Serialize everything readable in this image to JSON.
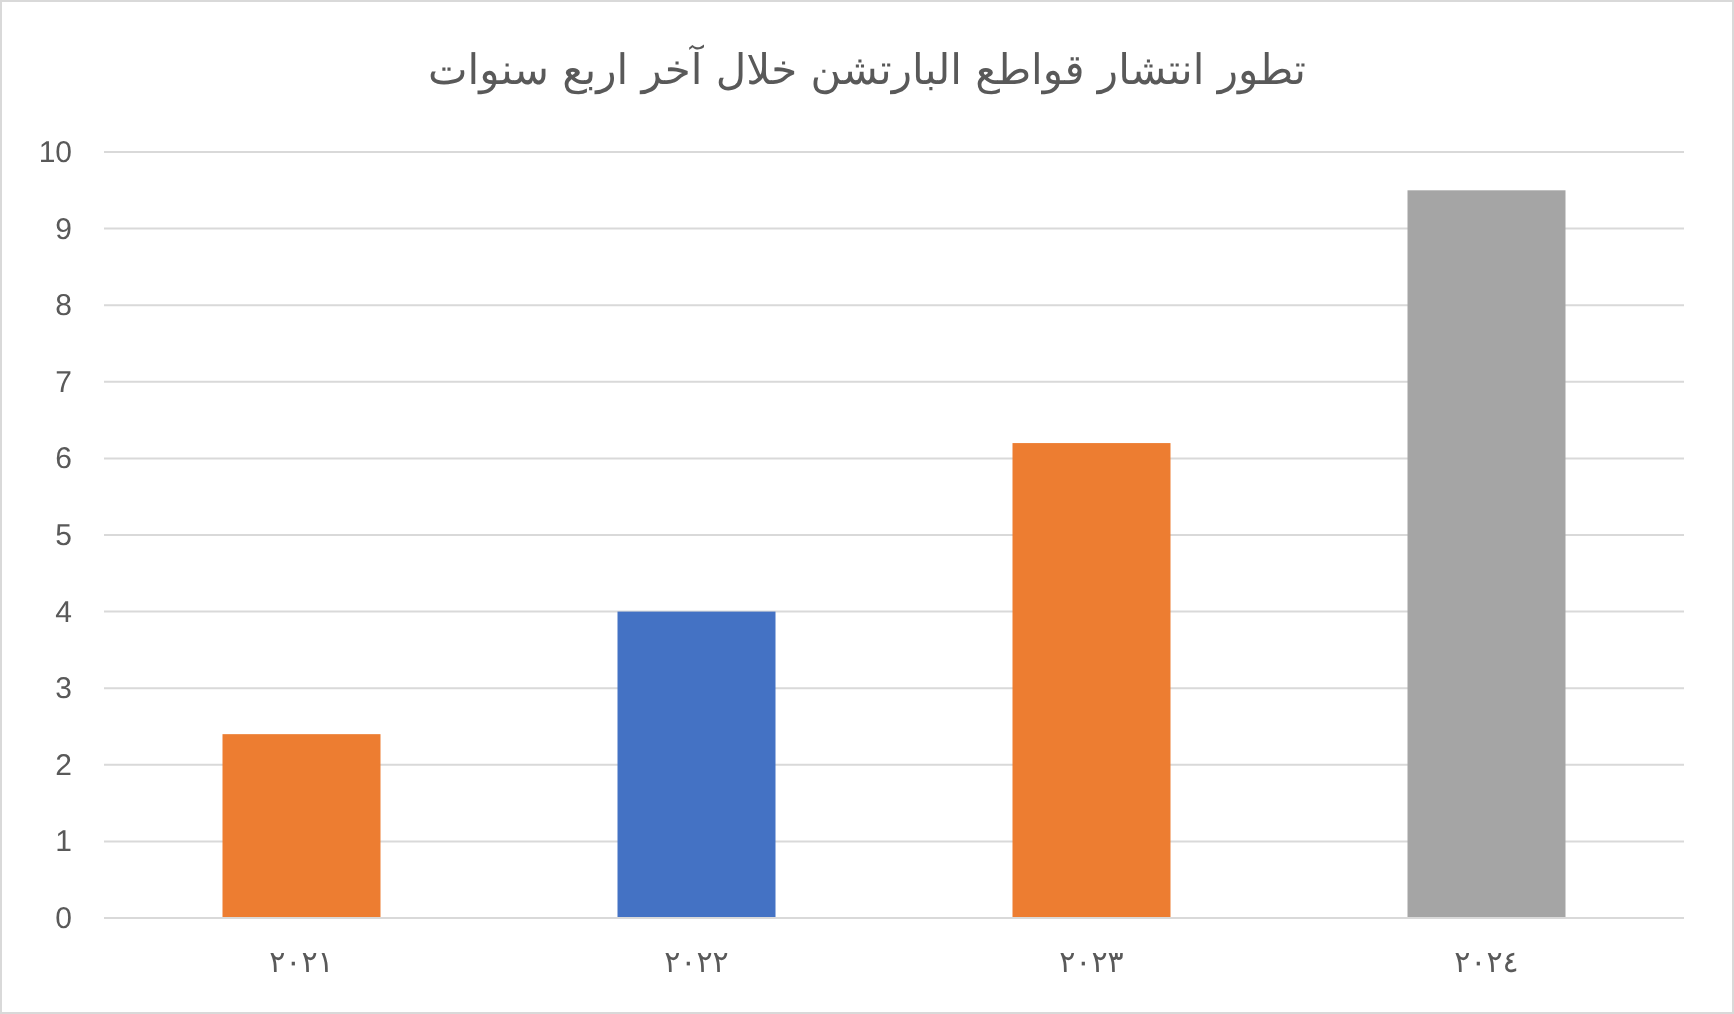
{
  "chart_data": {
    "type": "bar",
    "title": "تطور انتشار قواطع البارتشن خلال آخر اربع سنوات",
    "categories": [
      "٢٠٢١",
      "٢٠٢٢",
      "٢٠٢٣",
      "٢٠٢٤"
    ],
    "values": [
      2.4,
      4,
      6.2,
      9.5
    ],
    "colors": [
      "#ed7d31",
      "#4472c4",
      "#ed7d31",
      "#a5a5a5"
    ],
    "ylim": [
      0,
      10
    ],
    "yticks": [
      0,
      1,
      2,
      3,
      4,
      5,
      6,
      7,
      8,
      9,
      10
    ],
    "grid": "y"
  }
}
